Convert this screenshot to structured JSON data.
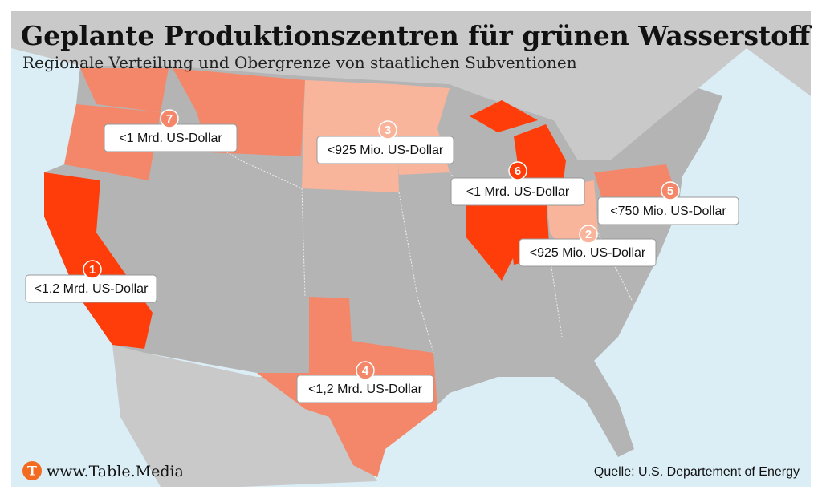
{
  "header": {
    "title": "Geplante Produktionszentren für grünen Wasserstoff",
    "subtitle": "Regionale Verteilung und Obergrenze von staatlichen Subventionen"
  },
  "hubs": [
    {
      "number": "1",
      "label": "<1,2 Mrd. US-Dollar",
      "color": "#ff3d0a"
    },
    {
      "number": "2",
      "label": "<925 Mio. US-Dollar",
      "color": "#f9b49c"
    },
    {
      "number": "3",
      "label": "<925 Mio. US-Dollar",
      "color": "#f9b49c"
    },
    {
      "number": "4",
      "label": "<1,2 Mrd. US-Dollar",
      "color": "#f4876a"
    },
    {
      "number": "5",
      "label": "<750 Mio. US-Dollar",
      "color": "#f4876a"
    },
    {
      "number": "6",
      "label": "<1 Mrd. US-Dollar",
      "color": "#ff3d0a"
    },
    {
      "number": "7",
      "label": "<1 Mrd. US-Dollar",
      "color": "#f4876a"
    }
  ],
  "footer": {
    "logo": "T",
    "brand": "www.Table.Media",
    "source": "Quelle: U.S. Departement of Energy"
  }
}
